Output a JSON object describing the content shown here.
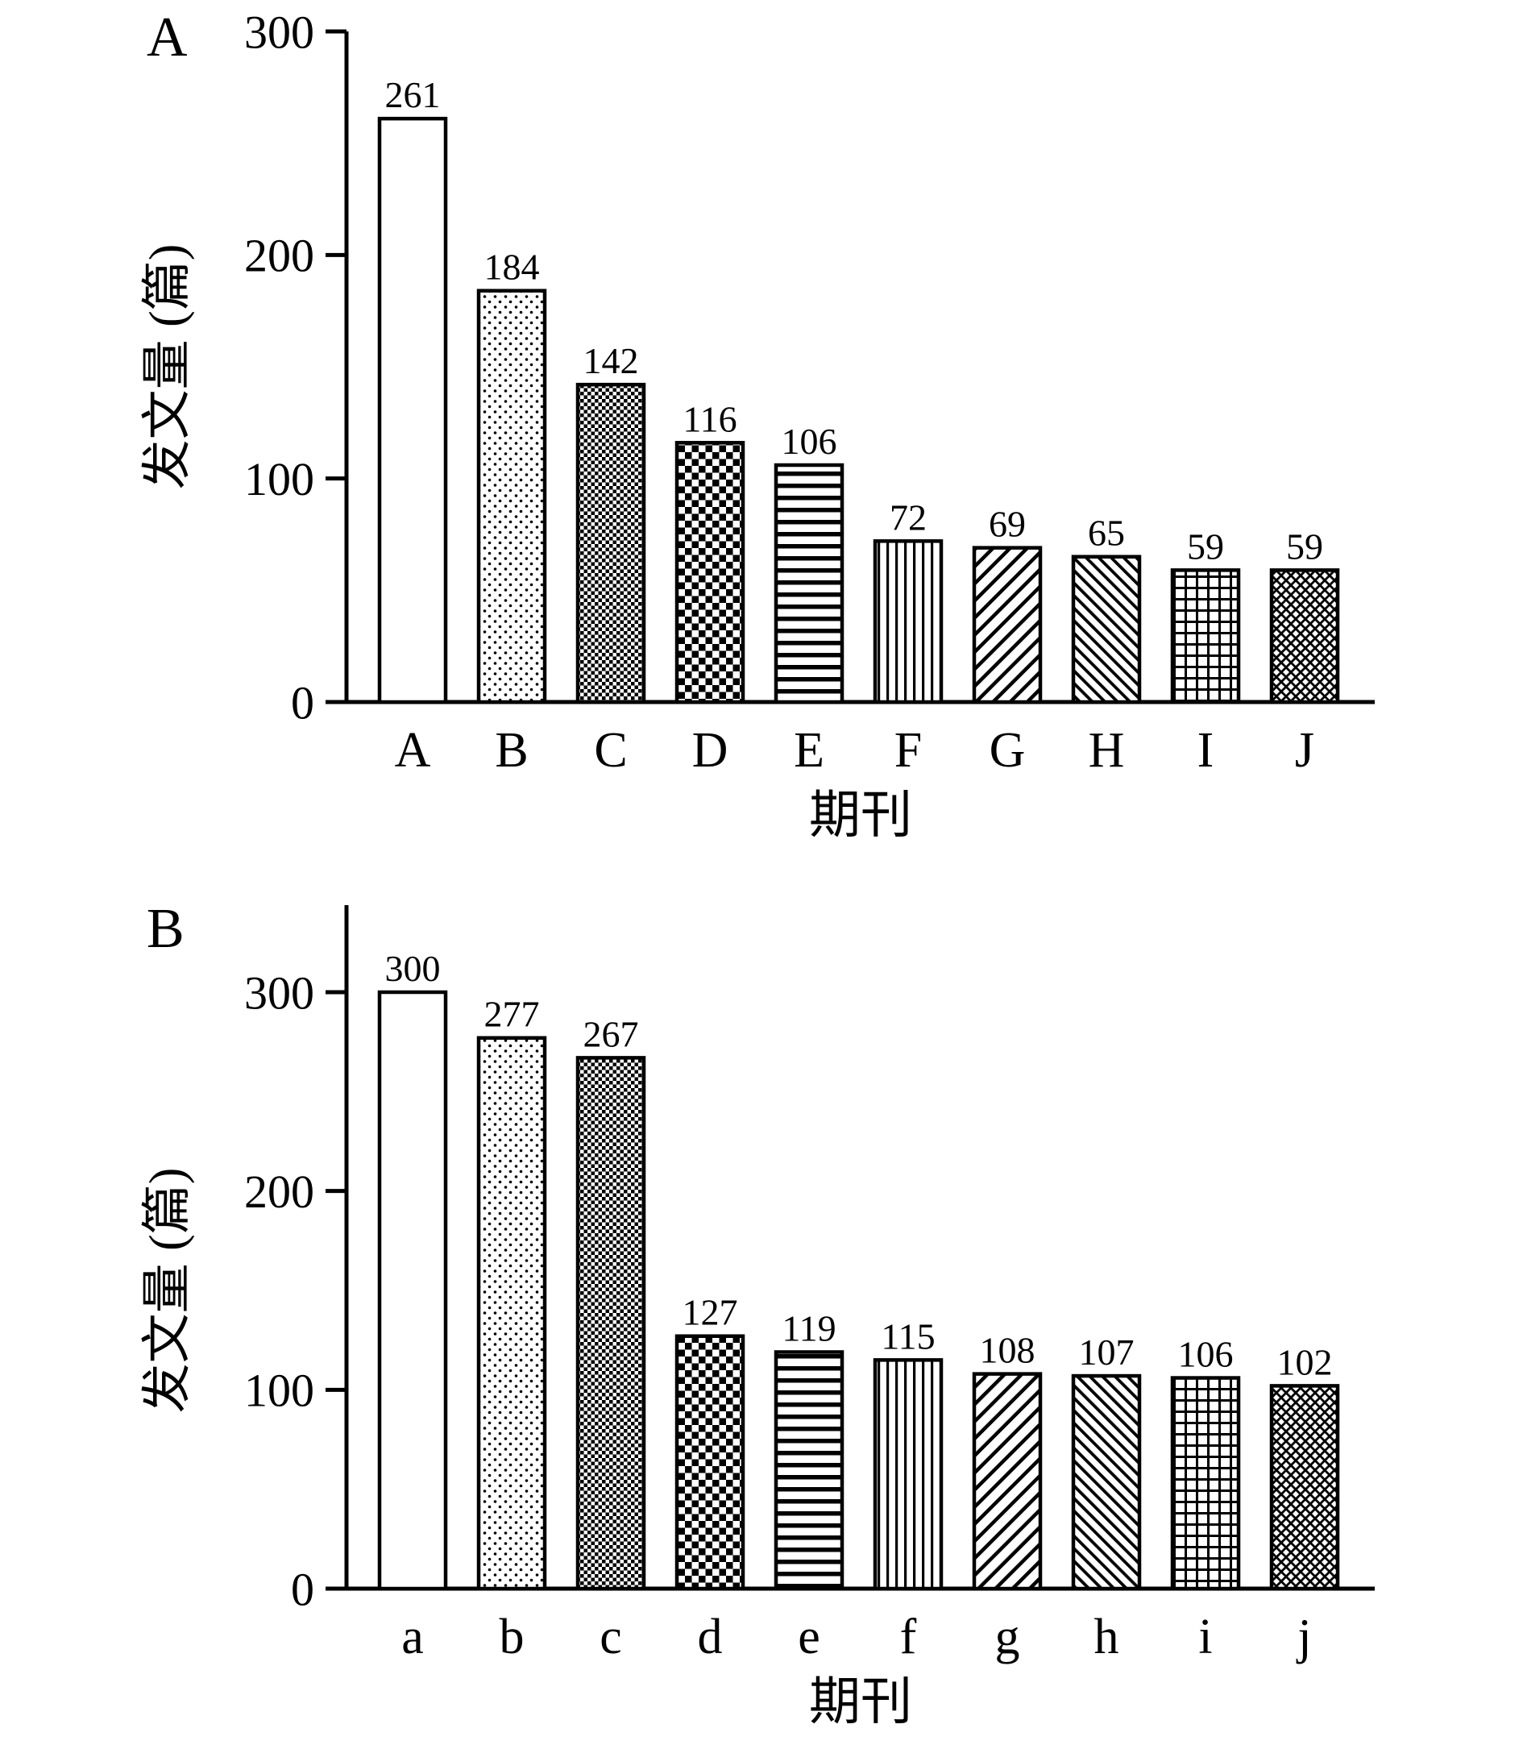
{
  "figure": {
    "background_color": "#ffffff",
    "ink_color": "#000000",
    "description": "Two stacked bar-chart panels comparing publication counts by journal"
  },
  "chart_data": [
    {
      "type": "bar",
      "panel_label": "A",
      "title": "",
      "xlabel": "期刊",
      "ylabel": "发文量 (篇)",
      "categories": [
        "A",
        "B",
        "C",
        "D",
        "E",
        "F",
        "G",
        "H",
        "I",
        "J"
      ],
      "values": [
        261,
        184,
        142,
        116,
        106,
        72,
        69,
        65,
        59,
        59
      ],
      "yticks": [
        0,
        100,
        200,
        300
      ],
      "ylim": [
        0,
        300
      ],
      "grid": false,
      "legend": "none",
      "value_labels": true,
      "bar_patterns": [
        "solid-white",
        "dots",
        "checker-fine",
        "checker-coarse",
        "hlines",
        "vlines",
        "diag-up",
        "diag-down",
        "grid",
        "diag-cross"
      ]
    },
    {
      "type": "bar",
      "panel_label": "B",
      "title": "",
      "xlabel": "期刊",
      "ylabel": "发文量 (篇)",
      "categories": [
        "a",
        "b",
        "c",
        "d",
        "e",
        "f",
        "g",
        "h",
        "i",
        "j"
      ],
      "values": [
        300,
        277,
        267,
        127,
        119,
        115,
        108,
        107,
        106,
        102
      ],
      "yticks": [
        0,
        100,
        200,
        300
      ],
      "ylim": [
        0,
        340
      ],
      "grid": false,
      "legend": "none",
      "value_labels": true,
      "bar_patterns": [
        "solid-white",
        "dots",
        "checker-fine",
        "checker-coarse",
        "hlines",
        "vlines",
        "diag-up",
        "diag-down",
        "grid",
        "diag-cross"
      ]
    }
  ]
}
